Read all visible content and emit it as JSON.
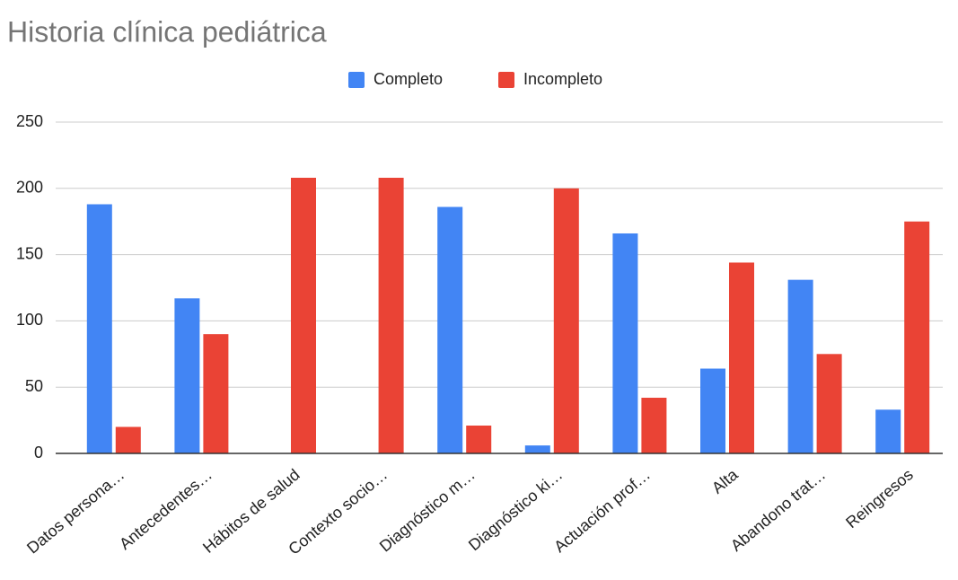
{
  "chart_data": {
    "type": "bar",
    "title": "Historia clínica pediátrica",
    "categories": [
      "Datos persona…",
      "Antecedentes…",
      "Hábitos de salud",
      "Contexto socio…",
      "Diagnóstico m…",
      "Diagnóstico ki…",
      "Actuación prof…",
      "Alta",
      "Abandono trat…",
      "Reingresos"
    ],
    "series": [
      {
        "name": "Completo",
        "color": "#4285f4",
        "values": [
          188,
          117,
          0,
          0,
          186,
          6,
          166,
          64,
          131,
          33
        ]
      },
      {
        "name": "Incompleto",
        "color": "#ea4335",
        "values": [
          20,
          90,
          208,
          208,
          21,
          200,
          42,
          144,
          75,
          175
        ]
      }
    ],
    "ylim": [
      0,
      250
    ],
    "yticks": [
      0,
      50,
      100,
      150,
      200,
      250
    ],
    "grid": true,
    "legend": "top"
  }
}
